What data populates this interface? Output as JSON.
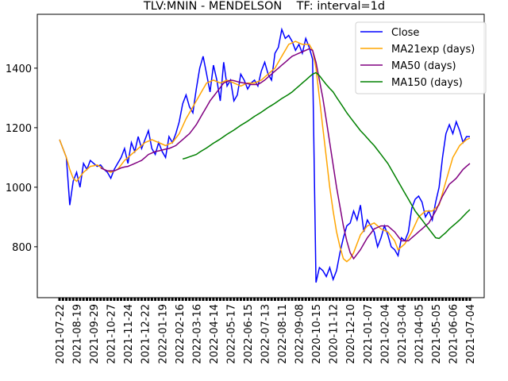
{
  "chart_data": {
    "type": "line",
    "title": "TLV:MNIN - MENDELSON    TF: interval=1d",
    "categories": [
      "2021-07-22",
      null,
      null,
      null,
      null,
      "2021-08-19",
      null,
      null,
      null,
      null,
      "2021-09-29",
      null,
      null,
      null,
      null,
      "2021-10-27",
      null,
      null,
      null,
      null,
      "2021-11-24",
      null,
      null,
      null,
      null,
      "2021-12-22",
      null,
      null,
      null,
      null,
      "2022-01-19",
      null,
      null,
      null,
      null,
      "2022-02-16",
      null,
      null,
      null,
      null,
      "2022-03-16",
      null,
      null,
      null,
      null,
      "2022-04-14",
      null,
      null,
      null,
      null,
      "2022-05-17",
      null,
      null,
      null,
      null,
      "2022-06-15",
      null,
      null,
      null,
      null,
      "2022-07-13",
      null,
      null,
      null,
      null,
      "2022-08-11",
      null,
      null,
      null,
      null,
      "2022-09-08",
      null,
      null,
      null,
      null,
      "2020-10-15",
      null,
      null,
      null,
      null,
      "2020-11-12",
      null,
      null,
      null,
      null,
      "2020-12-10",
      null,
      null,
      null,
      null,
      "2021-01-07",
      null,
      null,
      null,
      null,
      "2021-02-04",
      null,
      null,
      null,
      null,
      "2021-03-04",
      null,
      null,
      null,
      null,
      "2021-04-05",
      null,
      null,
      null,
      null,
      "2021-05-05",
      null,
      null,
      null,
      null,
      "2021-06-06",
      null,
      null,
      null,
      null,
      "2021-07-04"
    ],
    "series": [
      {
        "name": "Close",
        "color": "#0000ff",
        "values": [
          1160,
          1130,
          1100,
          940,
          1020,
          1050,
          1000,
          1080,
          1060,
          1090,
          1080,
          1070,
          1075,
          1060,
          1050,
          1030,
          1060,
          1080,
          1100,
          1130,
          1080,
          1150,
          1120,
          1170,
          1130,
          1160,
          1190,
          1130,
          1110,
          1150,
          1120,
          1100,
          1170,
          1150,
          1180,
          1220,
          1280,
          1310,
          1270,
          1250,
          1330,
          1400,
          1440,
          1380,
          1320,
          1410,
          1360,
          1290,
          1420,
          1340,
          1360,
          1290,
          1310,
          1380,
          1360,
          1330,
          1350,
          1360,
          1340,
          1390,
          1420,
          1380,
          1360,
          1450,
          1470,
          1530,
          1500,
          1510,
          1490,
          1460,
          1480,
          1450,
          1500,
          1470,
          1430,
          680,
          730,
          720,
          700,
          730,
          690,
          720,
          780,
          830,
          870,
          880,
          920,
          890,
          940,
          850,
          890,
          870,
          850,
          800,
          830,
          870,
          840,
          800,
          790,
          770,
          830,
          820,
          850,
          930,
          960,
          970,
          950,
          900,
          920,
          890,
          950,
          1000,
          1100,
          1180,
          1210,
          1180,
          1220,
          1190,
          1150,
          1170,
          1170
        ]
      },
      {
        "name": "MA21exp (days)",
        "color": "#ffa500",
        "values": [
          1160,
          1130,
          1100,
          1060,
          1030,
          1020,
          1035,
          1050,
          1060,
          1070,
          1072,
          1075,
          1068,
          1060,
          1055,
          1050,
          1055,
          1060,
          1075,
          1090,
          1100,
          1110,
          1120,
          1130,
          1140,
          1150,
          1155,
          1160,
          1155,
          1150,
          1145,
          1140,
          1145,
          1150,
          1165,
          1180,
          1205,
          1230,
          1250,
          1270,
          1290,
          1310,
          1330,
          1350,
          1355,
          1360,
          1355,
          1350,
          1355,
          1360,
          1355,
          1350,
          1345,
          1340,
          1345,
          1350,
          1350,
          1350,
          1355,
          1360,
          1370,
          1380,
          1390,
          1400,
          1420,
          1440,
          1460,
          1480,
          1485,
          1490,
          1485,
          1480,
          1480,
          1480,
          1460,
          1400,
          1300,
          1200,
          1100,
          1000,
          920,
          850,
          800,
          760,
          750,
          760,
          780,
          810,
          840,
          855,
          870,
          875,
          880,
          870,
          860,
          855,
          850,
          835,
          820,
          790,
          800,
          810,
          830,
          850,
          875,
          900,
          910,
          920,
          920,
          920,
          930,
          940,
          980,
          1020,
          1060,
          1100,
          1120,
          1140,
          1150,
          1160,
          1165
        ]
      },
      {
        "name": "MA50 (days)",
        "color": "#800080",
        "values": [
          null,
          null,
          null,
          null,
          null,
          null,
          null,
          null,
          null,
          null,
          null,
          null,
          1065,
          1060,
          1055,
          1055,
          1055,
          1060,
          1065,
          1068,
          1070,
          1075,
          1080,
          1085,
          1090,
          1100,
          1110,
          1115,
          1120,
          1122,
          1125,
          1128,
          1130,
          1135,
          1140,
          1150,
          1160,
          1170,
          1180,
          1195,
          1210,
          1230,
          1250,
          1270,
          1290,
          1305,
          1320,
          1335,
          1350,
          1355,
          1360,
          1358,
          1355,
          1352,
          1350,
          1348,
          1345,
          1345,
          1345,
          1352,
          1360,
          1370,
          1380,
          1390,
          1400,
          1410,
          1420,
          1430,
          1440,
          1445,
          1450,
          1455,
          1460,
          1465,
          1460,
          1420,
          1360,
          1300,
          1225,
          1150,
          1075,
          1000,
          935,
          870,
          820,
          780,
          760,
          775,
          790,
          810,
          830,
          845,
          860,
          865,
          870,
          870,
          870,
          860,
          850,
          835,
          820,
          820,
          820,
          830,
          840,
          850,
          860,
          870,
          880,
          900,
          920,
          945,
          970,
          990,
          1010,
          1020,
          1030,
          1045,
          1060,
          1070,
          1080
        ]
      },
      {
        "name": "MA150 (days)",
        "color": "#008000",
        "values": [
          null,
          null,
          null,
          null,
          null,
          null,
          null,
          null,
          null,
          null,
          null,
          null,
          null,
          null,
          null,
          null,
          null,
          null,
          null,
          null,
          null,
          null,
          null,
          null,
          null,
          null,
          null,
          null,
          null,
          null,
          null,
          null,
          null,
          null,
          null,
          null,
          1095,
          1098,
          1102,
          1106,
          1110,
          1118,
          1125,
          1132,
          1140,
          1148,
          1155,
          1162,
          1170,
          1178,
          1185,
          1192,
          1200,
          1208,
          1215,
          1222,
          1230,
          1238,
          1245,
          1252,
          1260,
          1268,
          1275,
          1282,
          1290,
          1298,
          1305,
          1312,
          1320,
          1330,
          1340,
          1350,
          1360,
          1370,
          1380,
          1385,
          1375,
          1360,
          1345,
          1332,
          1320,
          1302,
          1285,
          1268,
          1250,
          1235,
          1220,
          1205,
          1190,
          1178,
          1165,
          1152,
          1140,
          1125,
          1110,
          1095,
          1080,
          1060,
          1040,
          1020,
          1000,
          980,
          960,
          940,
          920,
          905,
          890,
          875,
          860,
          845,
          830,
          828,
          838,
          848,
          860,
          870,
          880,
          890,
          902,
          914,
          925
        ]
      }
    ],
    "ylim": [
      629,
      1581
    ],
    "yticks": [
      800,
      1000,
      1200,
      1400
    ],
    "grid": false,
    "legend": "upper right"
  }
}
